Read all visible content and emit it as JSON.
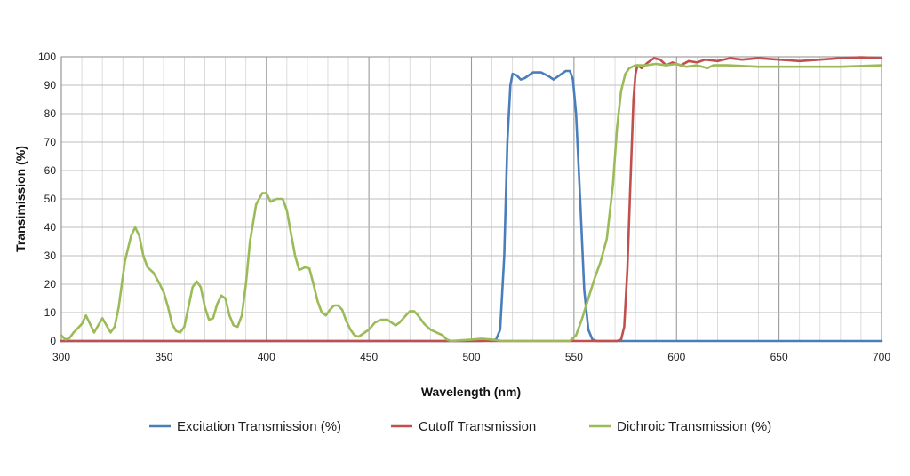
{
  "chart_data": {
    "type": "line",
    "title": "",
    "xlabel": "Wavelength (nm)",
    "ylabel": "Transimission (%)",
    "xlim": [
      300,
      700
    ],
    "ylim": [
      0,
      100
    ],
    "x_ticks": [
      300,
      350,
      400,
      450,
      500,
      550,
      600,
      650,
      700
    ],
    "y_ticks": [
      0,
      10,
      20,
      30,
      40,
      50,
      60,
      70,
      80,
      90,
      100
    ],
    "grid": true,
    "legend_position": "bottom",
    "series": [
      {
        "name": "Excitation Transmission (%)",
        "color": "#4a7ebb",
        "points": [
          [
            300,
            0
          ],
          [
            505,
            0
          ],
          [
            512,
            0.5
          ],
          [
            514,
            4
          ],
          [
            516,
            30
          ],
          [
            517.5,
            70
          ],
          [
            519,
            90
          ],
          [
            520,
            94
          ],
          [
            522,
            93.5
          ],
          [
            524,
            92
          ],
          [
            526,
            92.5
          ],
          [
            530,
            94.5
          ],
          [
            534,
            94.5
          ],
          [
            538,
            93
          ],
          [
            540,
            92
          ],
          [
            543,
            93.5
          ],
          [
            546,
            95
          ],
          [
            548,
            95
          ],
          [
            549.5,
            92
          ],
          [
            551,
            80
          ],
          [
            553,
            50
          ],
          [
            555,
            18
          ],
          [
            557,
            4
          ],
          [
            559,
            0.5
          ],
          [
            561,
            0
          ],
          [
            700,
            0
          ]
        ]
      },
      {
        "name": "Cutoff Transmission",
        "color": "#c0504d",
        "points": [
          [
            300,
            0
          ],
          [
            571,
            0
          ],
          [
            573,
            0.5
          ],
          [
            574.5,
            5
          ],
          [
            576,
            25
          ],
          [
            577.5,
            55
          ],
          [
            579,
            85
          ],
          [
            580,
            94
          ],
          [
            581,
            97
          ],
          [
            583,
            96
          ],
          [
            586,
            98
          ],
          [
            589,
            99.5
          ],
          [
            592,
            99
          ],
          [
            595,
            97
          ],
          [
            598,
            98
          ],
          [
            602,
            97
          ],
          [
            606,
            98.5
          ],
          [
            610,
            98
          ],
          [
            614,
            99
          ],
          [
            620,
            98.5
          ],
          [
            626,
            99.5
          ],
          [
            632,
            99
          ],
          [
            640,
            99.5
          ],
          [
            650,
            99
          ],
          [
            660,
            98.5
          ],
          [
            670,
            99
          ],
          [
            680,
            99.5
          ],
          [
            690,
            99.8
          ],
          [
            700,
            99.5
          ]
        ]
      },
      {
        "name": "Dichroic Transmission (%)",
        "color": "#9bbb59",
        "points": [
          [
            300,
            2
          ],
          [
            302,
            0.5
          ],
          [
            304,
            1
          ],
          [
            306,
            3
          ],
          [
            308,
            4.5
          ],
          [
            310,
            6
          ],
          [
            312,
            9
          ],
          [
            314,
            6
          ],
          [
            316,
            3
          ],
          [
            318,
            5.5
          ],
          [
            320,
            8
          ],
          [
            322,
            5.5
          ],
          [
            324,
            3
          ],
          [
            326,
            5
          ],
          [
            328,
            12
          ],
          [
            331,
            28
          ],
          [
            334,
            37
          ],
          [
            336,
            40
          ],
          [
            338,
            37
          ],
          [
            340,
            30
          ],
          [
            342,
            26
          ],
          [
            345,
            24
          ],
          [
            348,
            20
          ],
          [
            350,
            17
          ],
          [
            352,
            12
          ],
          [
            354,
            6
          ],
          [
            356,
            3.5
          ],
          [
            358,
            3
          ],
          [
            360,
            5
          ],
          [
            362,
            12
          ],
          [
            364,
            19
          ],
          [
            366,
            21
          ],
          [
            368,
            19
          ],
          [
            370,
            12
          ],
          [
            372,
            7.5
          ],
          [
            374,
            8
          ],
          [
            376,
            13
          ],
          [
            378,
            16
          ],
          [
            380,
            15
          ],
          [
            382,
            9
          ],
          [
            384,
            5.5
          ],
          [
            386,
            5
          ],
          [
            388,
            9
          ],
          [
            390,
            20
          ],
          [
            392,
            35
          ],
          [
            395,
            48
          ],
          [
            398,
            52
          ],
          [
            400,
            52
          ],
          [
            402,
            49
          ],
          [
            405,
            50
          ],
          [
            408,
            50
          ],
          [
            410,
            46
          ],
          [
            412,
            38
          ],
          [
            414,
            30
          ],
          [
            416,
            25
          ],
          [
            419,
            26
          ],
          [
            421,
            25.5
          ],
          [
            423,
            20
          ],
          [
            425,
            14
          ],
          [
            427,
            10
          ],
          [
            429,
            9
          ],
          [
            431,
            11
          ],
          [
            433,
            12.5
          ],
          [
            435,
            12.5
          ],
          [
            437,
            11
          ],
          [
            439,
            7
          ],
          [
            441,
            4
          ],
          [
            443,
            2
          ],
          [
            445,
            1.5
          ],
          [
            447,
            2.5
          ],
          [
            450,
            4
          ],
          [
            453,
            6.5
          ],
          [
            456,
            7.5
          ],
          [
            459,
            7.5
          ],
          [
            461,
            6.5
          ],
          [
            463,
            5.5
          ],
          [
            465,
            6.5
          ],
          [
            468,
            9
          ],
          [
            470,
            10.5
          ],
          [
            472,
            10.5
          ],
          [
            474,
            9
          ],
          [
            477,
            6
          ],
          [
            480,
            4
          ],
          [
            483,
            3
          ],
          [
            486,
            2
          ],
          [
            488,
            0.5
          ],
          [
            490,
            0
          ],
          [
            500,
            0.5
          ],
          [
            505,
            0.8
          ],
          [
            510,
            0.5
          ],
          [
            515,
            0
          ],
          [
            548,
            0
          ],
          [
            551,
            2
          ],
          [
            554,
            8
          ],
          [
            557,
            15
          ],
          [
            560,
            22
          ],
          [
            563,
            28
          ],
          [
            566,
            36
          ],
          [
            569,
            55
          ],
          [
            571,
            75
          ],
          [
            573,
            88
          ],
          [
            575,
            94
          ],
          [
            577,
            96
          ],
          [
            580,
            97
          ],
          [
            585,
            97
          ],
          [
            590,
            97.5
          ],
          [
            595,
            97
          ],
          [
            600,
            97.5
          ],
          [
            605,
            96.5
          ],
          [
            610,
            97
          ],
          [
            615,
            96
          ],
          [
            618,
            97
          ],
          [
            625,
            97
          ],
          [
            640,
            96.5
          ],
          [
            660,
            96.5
          ],
          [
            680,
            96.5
          ],
          [
            700,
            97
          ]
        ]
      }
    ]
  }
}
